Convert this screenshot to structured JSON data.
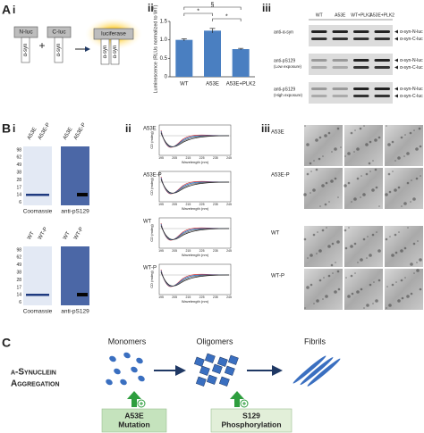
{
  "labels": {
    "A": "A",
    "Ai": "i",
    "Aii": "ii",
    "Aiii": "iii",
    "B": "B",
    "Bi": "i",
    "Bii": "ii",
    "Biii": "iii",
    "C": "C"
  },
  "schematic": {
    "n_luc": "N-luc",
    "c_luc": "C-luc",
    "luciferase": "luciferase",
    "syn": "α-syn",
    "plus": "+"
  },
  "chart_data": {
    "type": "bar",
    "y_label": "Luminescence (RLUs normalized to WT)",
    "categories": [
      "WT",
      "A53E",
      "A53E+PLK2"
    ],
    "values": [
      1.0,
      1.25,
      0.75
    ],
    "errors": [
      0.03,
      0.06,
      0.02
    ],
    "color": "#4a7fc1",
    "ylim": [
      0,
      1.5
    ],
    "yticks": [
      0,
      0.5,
      {
        "value": 1,
        "label": "1.0"
      },
      1.5
    ],
    "annotations": [
      "§",
      "*",
      "*"
    ]
  },
  "blot": {
    "lanes": [
      "WT",
      "A53E",
      "WT+PLK2",
      "A53E+PLK2"
    ],
    "rows": [
      {
        "label": "anti-α-syn",
        "bands": [
          "α-syn-N-luc",
          "α-syn-C-luc"
        ]
      },
      {
        "label": "anti-pS129",
        "note": "(Low exposure)",
        "bands": [
          "α-syn-N-luc",
          "α-syn-C-luc"
        ]
      },
      {
        "label": "anti-pS129",
        "note": "(High exposure)",
        "bands": [
          "α-syn-N-luc",
          "α-syn-C-luc"
        ]
      }
    ]
  },
  "gels": [
    {
      "lanes": [
        "A53E",
        "A53E-P"
      ],
      "markers": [
        98,
        62,
        49,
        38,
        28,
        17,
        14,
        6
      ],
      "stains": [
        "Coomassie",
        "anti-pS129"
      ]
    },
    {
      "lanes": [
        "WT",
        "WT-P"
      ],
      "markers": [
        98,
        62,
        49,
        38,
        28,
        17,
        14,
        6
      ],
      "stains": [
        "Coomassie",
        "anti-pS129"
      ]
    }
  ],
  "cd": {
    "y_label": "CD (mdeg)",
    "x_label": "Wavelength (nm)",
    "xticks": [
      195,
      205,
      215,
      225,
      235,
      245
    ],
    "plots": [
      "A53E",
      "A53E-P",
      "WT",
      "WT-P"
    ]
  },
  "em": {
    "rows": [
      "A53E",
      "A53E-P",
      "WT",
      "WT-P"
    ]
  },
  "scheme": {
    "title": [
      "α-Synuclein",
      "Aggregation"
    ],
    "stages": [
      "Monomers",
      "Oligomers",
      "Fibrils"
    ],
    "boxes": [
      [
        "A53E",
        "Mutation"
      ],
      [
        "S129",
        "Phosphorylation"
      ]
    ]
  }
}
